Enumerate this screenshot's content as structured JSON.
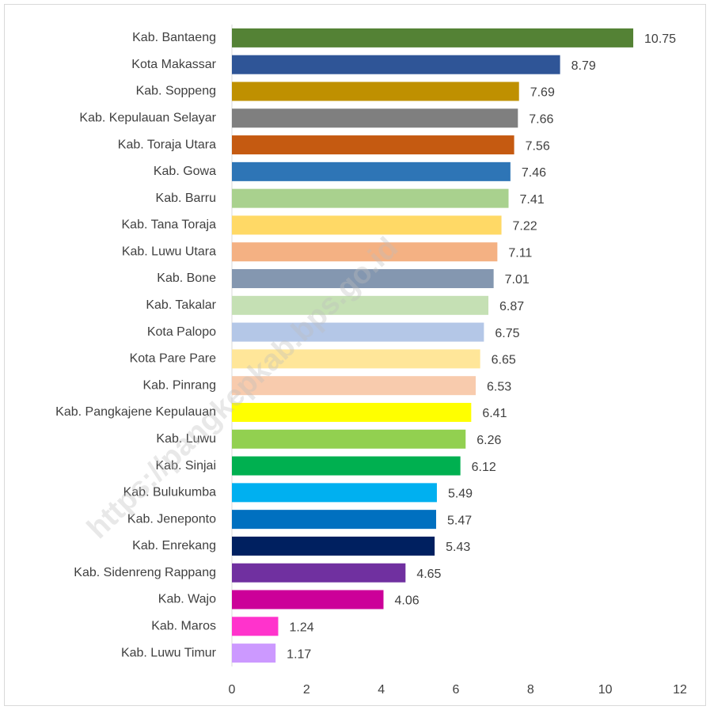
{
  "chart_data": {
    "type": "bar",
    "orientation": "horizontal",
    "watermark": "https://pangkepkab.bps.go.id",
    "categories": [
      "Kab. Bantaeng",
      "Kota Makassar",
      "Kab. Soppeng",
      "Kab. Kepulauan Selayar",
      "Kab. Toraja Utara",
      "Kab. Gowa",
      "Kab. Barru",
      "Kab. Tana Toraja",
      "Kab. Luwu Utara",
      "Kab. Bone",
      "Kab. Takalar",
      "Kota Palopo",
      "Kota Pare Pare",
      "Kab. Pinrang",
      "Kab. Pangkajene Kepulauan",
      "Kab. Luwu",
      "Kab. Sinjai",
      "Kab. Bulukumba",
      "Kab. Jeneponto",
      "Kab. Enrekang",
      "Kab. Sidenreng Rappang",
      "Kab. Wajo",
      "Kab. Maros",
      "Kab. Luwu Timur"
    ],
    "values": [
      10.75,
      8.79,
      7.69,
      7.66,
      7.56,
      7.46,
      7.41,
      7.22,
      7.11,
      7.01,
      6.87,
      6.75,
      6.65,
      6.53,
      6.41,
      6.26,
      6.12,
      5.49,
      5.47,
      5.43,
      4.65,
      4.06,
      1.24,
      1.17
    ],
    "colors": [
      "#548235",
      "#2f5597",
      "#bf9000",
      "#7f7f7f",
      "#c55a11",
      "#2e75b6",
      "#a9d18e",
      "#ffd966",
      "#f4b183",
      "#8497b0",
      "#c5e0b4",
      "#b4c7e7",
      "#ffe699",
      "#f8cbad",
      "#ffff00",
      "#92d050",
      "#00b050",
      "#00b0f0",
      "#0070c0",
      "#002060",
      "#7030a0",
      "#cc0099",
      "#ff33cc",
      "#cc99ff"
    ],
    "xlim": [
      0,
      12
    ],
    "xticks": [
      0,
      2,
      4,
      6,
      8,
      10,
      12
    ],
    "grid": false
  }
}
